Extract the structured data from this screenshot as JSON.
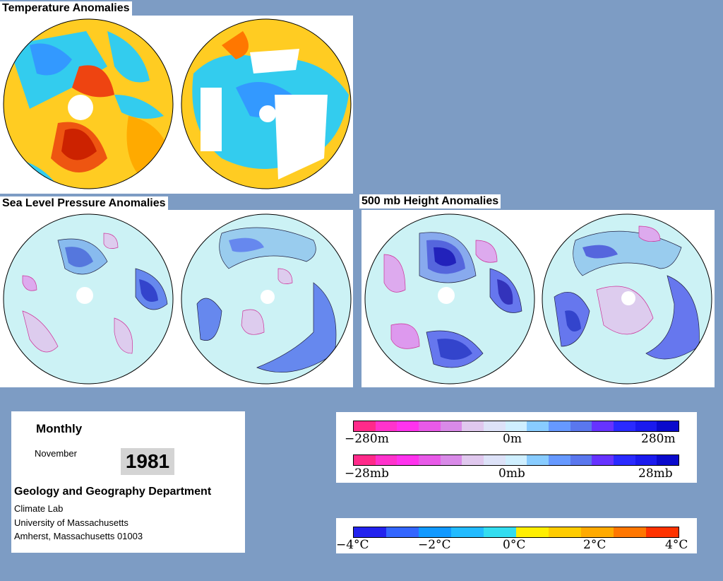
{
  "titles": {
    "temperature": "Temperature Anomalies",
    "slp": "Sea Level Pressure Anomalies",
    "height500": "500 mb Height Anomalies"
  },
  "info": {
    "period": "Monthly",
    "month": "November",
    "year": "1981",
    "department": "Geology and Geography Department",
    "lab": "Climate Lab",
    "university": "University of Massachusetts",
    "address": "Amherst, Massachusetts 01003"
  },
  "legend_height": {
    "min_label": "−280m",
    "mid_label": "0m",
    "max_label": "280m"
  },
  "legend_pressure": {
    "min_label": "−28mb",
    "mid_label": "0mb",
    "max_label": "28mb"
  },
  "legend_temperature": {
    "ticks": [
      "−4°C",
      "−2°C",
      "0°C",
      "2°C",
      "4°C"
    ]
  },
  "colors": {
    "background": "#7d9cc4",
    "height_scale": [
      "#ff2a8a",
      "#ff33cc",
      "#ff33ee",
      "#e85ae8",
      "#d98ae8",
      "#e0c8ee",
      "#dde2f8",
      "#cfefff",
      "#88ccff",
      "#6699ff",
      "#5a77ee",
      "#6633ff",
      "#2a2aff",
      "#1a1aee",
      "#0a0acc"
    ],
    "temp_scale": [
      "#2222ee",
      "#3366ff",
      "#1199ff",
      "#22bbff",
      "#33ddf0",
      "#ffee00",
      "#ffcc00",
      "#ffaa00",
      "#ff7700",
      "#ff3300"
    ],
    "globe_temp": "#ffcc22",
    "globe_pressure": "#ccf2f5"
  }
}
